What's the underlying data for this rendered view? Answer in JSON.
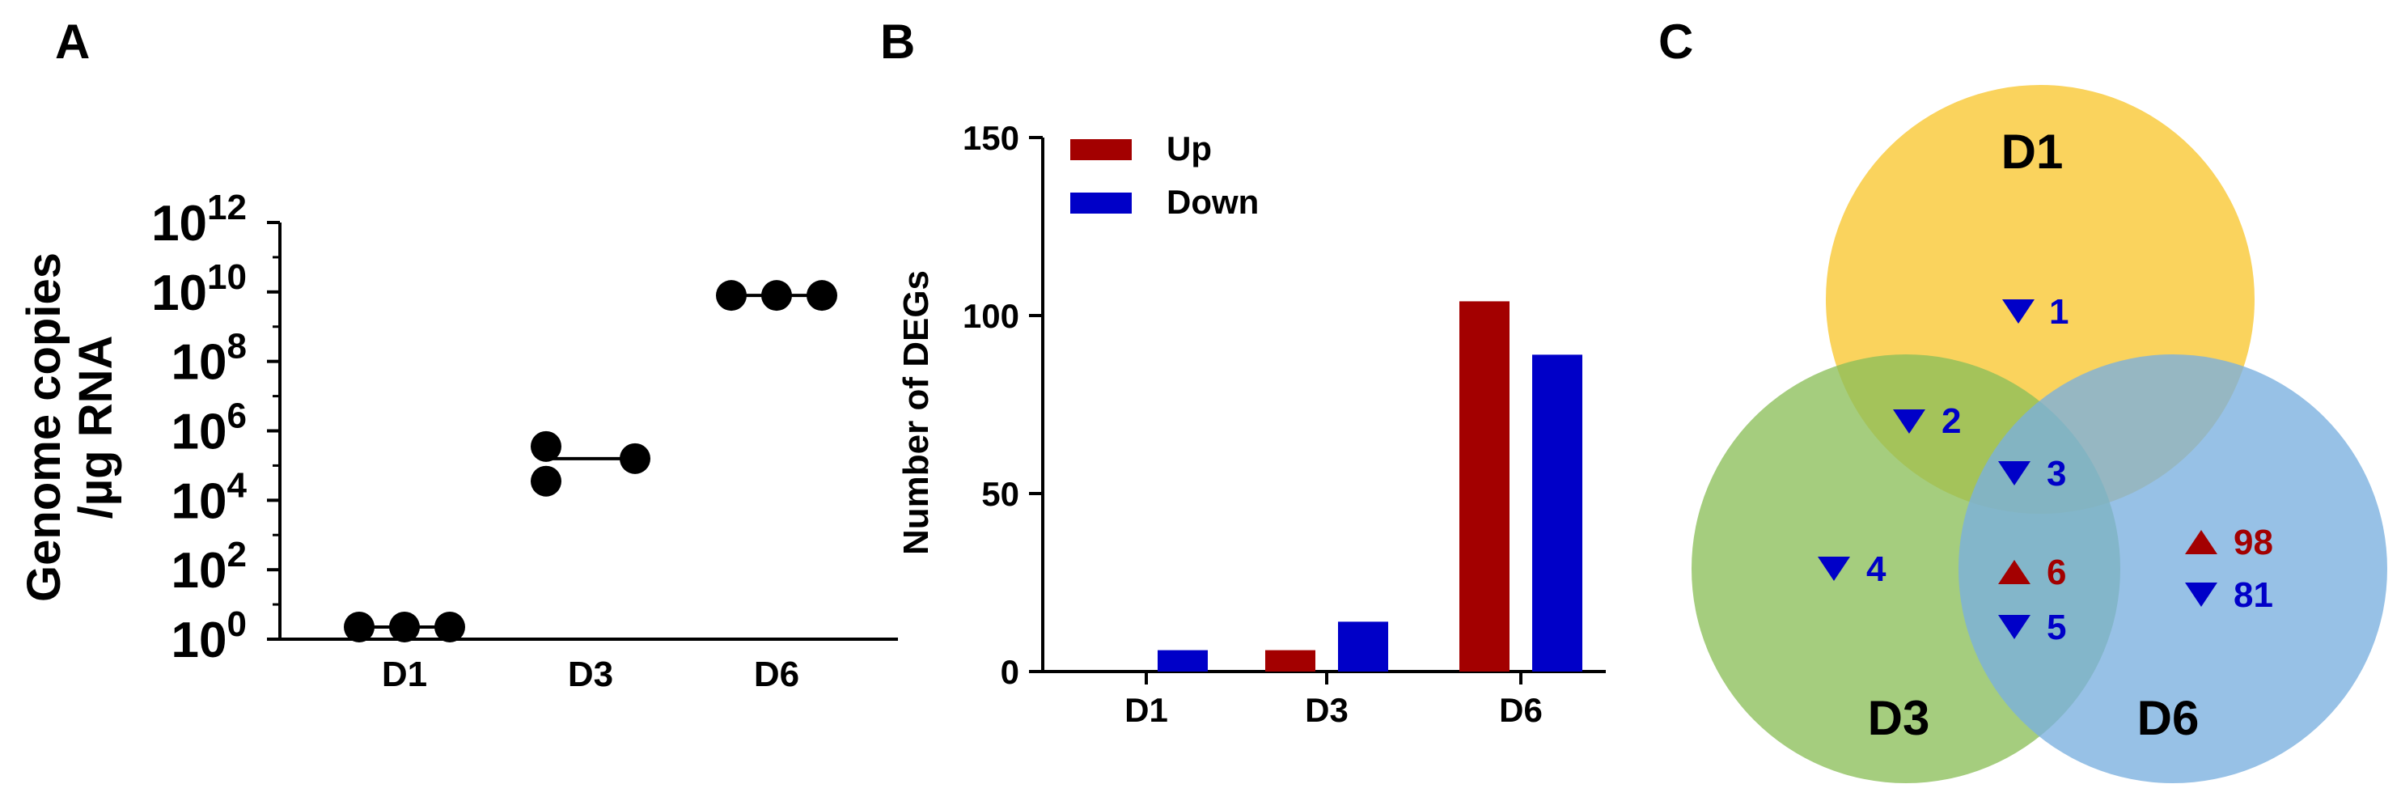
{
  "panels": {
    "a": "A",
    "b": "B",
    "c": "C"
  },
  "chart_data": [
    {
      "id": "A",
      "type": "scatter",
      "title": "",
      "ylabel_line1": "Genome copies",
      "ylabel_line2": "/µg RNA",
      "yscale": "log10",
      "ylim_exp": [
        0,
        12
      ],
      "yticks": [
        {
          "base": "10",
          "exp": "0"
        },
        {
          "base": "10",
          "exp": "2"
        },
        {
          "base": "10",
          "exp": "4"
        },
        {
          "base": "10",
          "exp": "6"
        },
        {
          "base": "10",
          "exp": "8"
        },
        {
          "base": "10",
          "exp": "10"
        },
        {
          "base": "10",
          "exp": "12"
        }
      ],
      "categories": [
        "D1",
        "D3",
        "D6"
      ],
      "points": [
        {
          "group": "D1",
          "log10": 0.35
        },
        {
          "group": "D1",
          "log10": 0.35
        },
        {
          "group": "D1",
          "log10": 0.35
        },
        {
          "group": "D3",
          "log10": 5.55
        },
        {
          "group": "D3",
          "log10": 4.55
        },
        {
          "group": "D3",
          "log10": 5.2
        },
        {
          "group": "D6",
          "log10": 9.9
        },
        {
          "group": "D6",
          "log10": 9.9
        },
        {
          "group": "D6",
          "log10": 9.9
        }
      ],
      "medians_log10": [
        0.35,
        5.2,
        9.9
      ]
    },
    {
      "id": "B",
      "type": "bar",
      "title": "",
      "xlabel": "",
      "ylabel": "Number of DEGs",
      "ylim": [
        0,
        150
      ],
      "yticks": [
        0,
        50,
        100,
        150
      ],
      "categories": [
        "D1",
        "D3",
        "D6"
      ],
      "legend_position": "top-left",
      "series": [
        {
          "name": "Up",
          "color": "#a30000",
          "values": [
            0,
            6,
            104
          ]
        },
        {
          "name": "Down",
          "color": "#0000c8",
          "values": [
            6,
            14,
            89
          ]
        }
      ]
    },
    {
      "id": "C",
      "type": "venn",
      "sets": [
        {
          "name": "D1",
          "color": "#f9c730"
        },
        {
          "name": "D3",
          "color": "#8cbf5a"
        },
        {
          "name": "D6",
          "color": "#7aafdf"
        }
      ],
      "regions": [
        {
          "sets": [
            "D1"
          ],
          "down": "1"
        },
        {
          "sets": [
            "D1",
            "D3"
          ],
          "down": "2"
        },
        {
          "sets": [
            "D1",
            "D3",
            "D6"
          ],
          "down": "3"
        },
        {
          "sets": [
            "D3"
          ],
          "down": "4"
        },
        {
          "sets": [
            "D3",
            "D6"
          ],
          "up": "6",
          "down": "5"
        },
        {
          "sets": [
            "D6"
          ],
          "up": "98",
          "down": "81"
        }
      ],
      "up_color": "#a30000",
      "down_color": "#0000c8"
    }
  ]
}
